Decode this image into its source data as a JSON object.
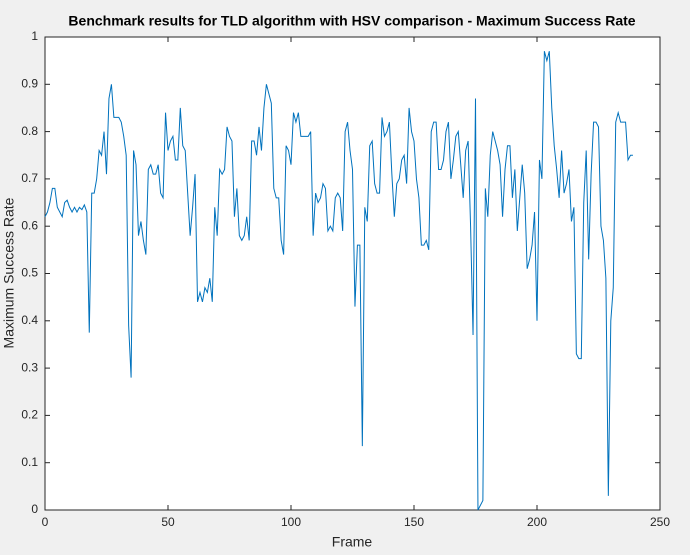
{
  "chart_data": {
    "type": "line",
    "title": "Benchmark results for TLD algorithm with HSV comparison - Maximum Success Rate",
    "xlabel": "Frame",
    "ylabel": "Maximum Success Rate",
    "x": [
      0,
      1,
      2,
      3,
      4,
      5,
      6,
      7,
      8,
      9,
      10,
      11,
      12,
      13,
      14,
      15,
      16,
      17,
      18,
      19,
      20,
      21,
      22,
      23,
      24,
      25,
      26,
      27,
      28,
      29,
      30,
      31,
      32,
      33,
      34,
      35,
      36,
      37,
      38,
      39,
      40,
      41,
      42,
      43,
      44,
      45,
      46,
      47,
      48,
      49,
      50,
      51,
      52,
      53,
      54,
      55,
      56,
      57,
      58,
      59,
      60,
      61,
      62,
      63,
      64,
      65,
      66,
      67,
      68,
      69,
      70,
      71,
      72,
      73,
      74,
      75,
      76,
      77,
      78,
      79,
      80,
      81,
      82,
      83,
      84,
      85,
      86,
      87,
      88,
      89,
      90,
      91,
      92,
      93,
      94,
      95,
      96,
      97,
      98,
      99,
      100,
      101,
      102,
      103,
      104,
      105,
      106,
      107,
      108,
      109,
      110,
      111,
      112,
      113,
      114,
      115,
      116,
      117,
      118,
      119,
      120,
      121,
      122,
      123,
      124,
      125,
      126,
      127,
      128,
      129,
      130,
      131,
      132,
      133,
      134,
      135,
      136,
      137,
      138,
      139,
      140,
      141,
      142,
      143,
      144,
      145,
      146,
      147,
      148,
      149,
      150,
      151,
      152,
      153,
      154,
      155,
      156,
      157,
      158,
      159,
      160,
      161,
      162,
      163,
      164,
      165,
      166,
      167,
      168,
      169,
      170,
      171,
      172,
      173,
      174,
      175,
      176,
      177,
      178,
      179,
      180,
      181,
      182,
      183,
      184,
      185,
      186,
      187,
      188,
      189,
      190,
      191,
      192,
      193,
      194,
      195,
      196,
      197,
      198,
      199,
      200,
      201,
      202,
      203,
      204,
      205,
      206,
      207,
      208,
      209,
      210,
      211,
      212,
      213,
      214,
      215,
      216,
      217,
      218,
      219,
      220,
      221,
      222,
      223,
      224,
      225,
      226,
      227,
      228,
      229,
      230,
      231,
      232,
      233,
      234,
      235,
      236,
      237,
      238,
      239
    ],
    "values": [
      0.62,
      0.63,
      0.65,
      0.68,
      0.68,
      0.64,
      0.63,
      0.62,
      0.65,
      0.655,
      0.64,
      0.63,
      0.64,
      0.63,
      0.64,
      0.635,
      0.645,
      0.63,
      0.375,
      0.67,
      0.67,
      0.7,
      0.76,
      0.75,
      0.8,
      0.71,
      0.87,
      0.9,
      0.83,
      0.83,
      0.83,
      0.82,
      0.79,
      0.75,
      0.39,
      0.28,
      0.76,
      0.73,
      0.58,
      0.61,
      0.57,
      0.54,
      0.72,
      0.73,
      0.71,
      0.71,
      0.73,
      0.67,
      0.66,
      0.84,
      0.76,
      0.78,
      0.79,
      0.74,
      0.74,
      0.85,
      0.77,
      0.76,
      0.67,
      0.58,
      0.64,
      0.71,
      0.44,
      0.46,
      0.44,
      0.47,
      0.46,
      0.49,
      0.44,
      0.64,
      0.58,
      0.72,
      0.71,
      0.72,
      0.81,
      0.79,
      0.78,
      0.62,
      0.68,
      0.58,
      0.57,
      0.58,
      0.62,
      0.57,
      0.78,
      0.78,
      0.75,
      0.81,
      0.76,
      0.85,
      0.9,
      0.88,
      0.86,
      0.68,
      0.66,
      0.66,
      0.57,
      0.54,
      0.77,
      0.76,
      0.73,
      0.84,
      0.82,
      0.84,
      0.79,
      0.79,
      0.79,
      0.79,
      0.8,
      0.58,
      0.67,
      0.65,
      0.66,
      0.69,
      0.68,
      0.59,
      0.6,
      0.59,
      0.66,
      0.67,
      0.66,
      0.59,
      0.8,
      0.82,
      0.76,
      0.72,
      0.43,
      0.56,
      0.56,
      0.135,
      0.64,
      0.61,
      0.77,
      0.78,
      0.69,
      0.67,
      0.67,
      0.83,
      0.79,
      0.8,
      0.82,
      0.71,
      0.62,
      0.69,
      0.7,
      0.74,
      0.75,
      0.69,
      0.85,
      0.8,
      0.78,
      0.7,
      0.66,
      0.56,
      0.56,
      0.57,
      0.55,
      0.8,
      0.82,
      0.82,
      0.72,
      0.72,
      0.74,
      0.8,
      0.82,
      0.7,
      0.74,
      0.79,
      0.8,
      0.73,
      0.66,
      0.76,
      0.78,
      0.6,
      0.37,
      0.87,
      0,
      0.01,
      0.02,
      0.68,
      0.62,
      0.75,
      0.8,
      0.78,
      0.76,
      0.73,
      0.62,
      0.72,
      0.77,
      0.77,
      0.66,
      0.72,
      0.59,
      0.66,
      0.73,
      0.67,
      0.51,
      0.53,
      0.56,
      0.63,
      0.4,
      0.74,
      0.7,
      0.97,
      0.95,
      0.97,
      0.85,
      0.77,
      0.72,
      0.66,
      0.76,
      0.67,
      0.69,
      0.72,
      0.61,
      0.64,
      0.33,
      0.32,
      0.32,
      0.65,
      0.76,
      0.53,
      0.71,
      0.82,
      0.82,
      0.81,
      0.6,
      0.57,
      0.49,
      0.03,
      0.4,
      0.47,
      0.82,
      0.84,
      0.82,
      0.82,
      0.82,
      0.74,
      0.75,
      0.75
    ],
    "color": "#0072bd",
    "xlim": [
      0,
      250
    ],
    "xticks": [
      0,
      50,
      100,
      150,
      200,
      250
    ],
    "ylim": [
      0,
      1
    ],
    "yticks": [
      0,
      0.1,
      0.2,
      0.3,
      0.4,
      0.5,
      0.6,
      0.7,
      0.8,
      0.9,
      1
    ]
  }
}
